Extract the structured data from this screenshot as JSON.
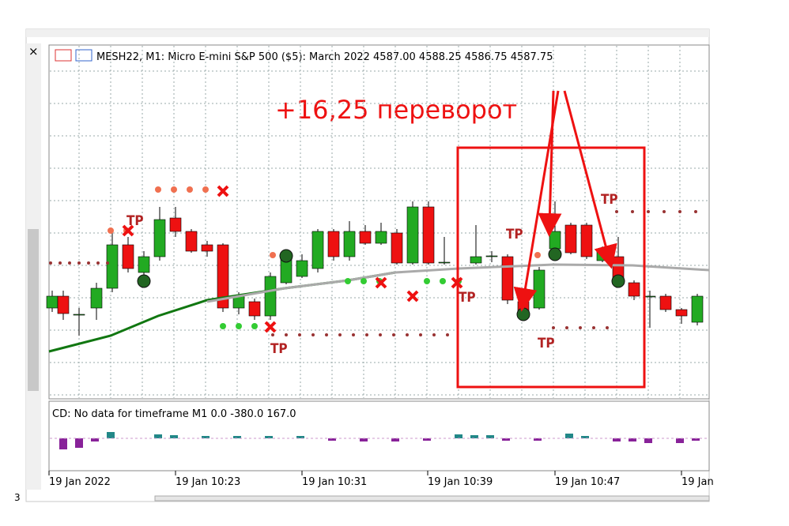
{
  "window": {
    "close": "×",
    "header": "MESH22, M1:  Micro E-mini S&P 500 ($5): March 2022  4587.00 4588.25 4586.75 4587.75",
    "annotation": "+16,25 переворот",
    "tp_labels": [
      "TP",
      "TP",
      "TP",
      "TP",
      "TP",
      "TP"
    ],
    "indicator": "CD: No data for timeframe M1 0.0 -380.0 167.0",
    "time_labels": [
      "19 Jan 2022",
      "19 Jan 10:23",
      "19 Jan 10:31",
      "19 Jan 10:39",
      "19 Jan 10:47",
      "19 Jan"
    ],
    "corner": "3"
  }
}
